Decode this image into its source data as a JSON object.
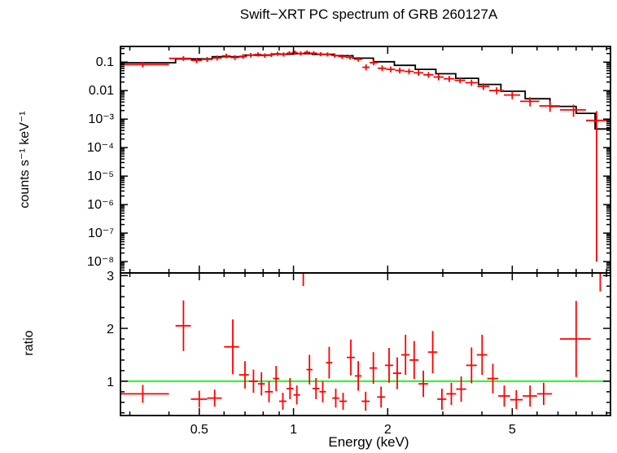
{
  "chart_data": {
    "type": "scatter",
    "title": "Swift−XRT PC spectrum of GRB 260127A",
    "xlabel": "Energy (keV)",
    "xscale": "log",
    "xlim": [
      0.28,
      10.3
    ],
    "xticks_major": [
      {
        "v": 0.5,
        "label": "0.5"
      },
      {
        "v": 1,
        "label": "1"
      },
      {
        "v": 2,
        "label": "2"
      },
      {
        "v": 5,
        "label": "5"
      }
    ],
    "xticks_minor": [
      0.3,
      0.4,
      0.6,
      0.7,
      0.8,
      0.9,
      3,
      4,
      6,
      7,
      8,
      9,
      10
    ],
    "panels": [
      {
        "name": "spectrum",
        "ylabel": "counts s⁻¹ keV⁻¹",
        "yscale": "log",
        "ylim": [
          4e-09,
          0.355
        ],
        "yticks": [
          {
            "v": 0.1,
            "label": "0.1"
          },
          {
            "v": 0.01,
            "label": "0.01"
          },
          {
            "v": 0.001,
            "label": "10⁻³"
          },
          {
            "v": 0.0001,
            "label": "10⁻⁴"
          },
          {
            "v": 1e-05,
            "label": "10⁻⁵"
          },
          {
            "v": 1e-06,
            "label": "10⁻⁶"
          },
          {
            "v": 1e-07,
            "label": "10⁻⁷"
          },
          {
            "v": 1e-08,
            "label": "10⁻⁸"
          }
        ],
        "data_color": "#ff0000",
        "model_color": "#000000",
        "points": [
          [
            0.33,
            0.28,
            0.4,
            0.082,
            0.066,
            0.102
          ],
          [
            0.445,
            0.4,
            0.47,
            0.135,
            0.11,
            0.163
          ],
          [
            0.49,
            0.47,
            0.51,
            0.115,
            0.092,
            0.14
          ],
          [
            0.53,
            0.51,
            0.55,
            0.125,
            0.101,
            0.152
          ],
          [
            0.57,
            0.55,
            0.59,
            0.14,
            0.114,
            0.17
          ],
          [
            0.61,
            0.59,
            0.63,
            0.165,
            0.136,
            0.198
          ],
          [
            0.65,
            0.63,
            0.67,
            0.145,
            0.119,
            0.175
          ],
          [
            0.69,
            0.67,
            0.71,
            0.16,
            0.132,
            0.192
          ],
          [
            0.73,
            0.71,
            0.75,
            0.175,
            0.146,
            0.209
          ],
          [
            0.77,
            0.75,
            0.79,
            0.186,
            0.156,
            0.221
          ],
          [
            0.81,
            0.79,
            0.83,
            0.17,
            0.142,
            0.203
          ],
          [
            0.85,
            0.83,
            0.87,
            0.18,
            0.151,
            0.214
          ],
          [
            0.89,
            0.87,
            0.91,
            0.196,
            0.165,
            0.232
          ],
          [
            0.93,
            0.91,
            0.95,
            0.186,
            0.156,
            0.221
          ],
          [
            0.97,
            0.95,
            0.99,
            0.206,
            0.174,
            0.243
          ],
          [
            1.01,
            0.99,
            1.03,
            0.216,
            0.183,
            0.254
          ],
          [
            1.055,
            1.03,
            1.08,
            0.201,
            0.17,
            0.237
          ],
          [
            1.105,
            1.08,
            1.13,
            0.22,
            0.187,
            0.258
          ],
          [
            1.16,
            1.13,
            1.19,
            0.206,
            0.174,
            0.242
          ],
          [
            1.22,
            1.19,
            1.25,
            0.191,
            0.161,
            0.226
          ],
          [
            1.285,
            1.25,
            1.32,
            0.186,
            0.157,
            0.22
          ],
          [
            1.355,
            1.32,
            1.39,
            0.171,
            0.143,
            0.203
          ],
          [
            1.43,
            1.39,
            1.47,
            0.156,
            0.13,
            0.186
          ],
          [
            1.515,
            1.47,
            1.56,
            0.146,
            0.122,
            0.174
          ],
          [
            1.61,
            1.56,
            1.66,
            0.126,
            0.104,
            0.151
          ],
          [
            1.705,
            1.66,
            1.75,
            0.066,
            0.051,
            0.084
          ],
          [
            1.805,
            1.75,
            1.86,
            0.096,
            0.077,
            0.118
          ],
          [
            1.92,
            1.86,
            1.98,
            0.061,
            0.048,
            0.077
          ],
          [
            2.045,
            1.98,
            2.11,
            0.056,
            0.044,
            0.07
          ],
          [
            2.185,
            2.11,
            2.26,
            0.051,
            0.04,
            0.064
          ],
          [
            2.34,
            2.26,
            2.42,
            0.047,
            0.037,
            0.059
          ],
          [
            2.51,
            2.42,
            2.6,
            0.042,
            0.033,
            0.053
          ],
          [
            2.7,
            2.6,
            2.8,
            0.036,
            0.028,
            0.045
          ],
          [
            2.91,
            2.8,
            3.02,
            0.03,
            0.023,
            0.038
          ],
          [
            3.145,
            3.02,
            3.27,
            0.026,
            0.02,
            0.033
          ],
          [
            3.405,
            3.27,
            3.54,
            0.023,
            0.018,
            0.029
          ],
          [
            3.705,
            3.54,
            3.87,
            0.019,
            0.0145,
            0.0242
          ],
          [
            4.045,
            3.87,
            4.22,
            0.014,
            0.0105,
            0.018
          ],
          [
            4.46,
            4.22,
            4.7,
            0.01,
            0.0074,
            0.0131
          ],
          [
            5.0,
            4.7,
            5.3,
            0.007,
            0.005,
            0.0094
          ],
          [
            5.7,
            5.3,
            6.1,
            0.0042,
            0.0028,
            0.0059
          ],
          [
            6.6,
            6.1,
            7.1,
            0.0029,
            0.0018,
            0.0042
          ],
          [
            7.85,
            7.1,
            8.6,
            0.0021,
            0.0012,
            0.0032
          ],
          [
            9.3,
            8.6,
            10.0,
            0.0009,
            1e-08,
            0.0019
          ]
        ],
        "model_steps": [
          [
            0.28,
            0.42,
            0.095
          ],
          [
            0.42,
            0.55,
            0.13
          ],
          [
            0.55,
            0.7,
            0.155
          ],
          [
            0.7,
            0.85,
            0.175
          ],
          [
            0.85,
            1.0,
            0.19
          ],
          [
            1.0,
            1.15,
            0.197
          ],
          [
            1.15,
            1.35,
            0.188
          ],
          [
            1.35,
            1.55,
            0.168
          ],
          [
            1.55,
            1.8,
            0.138
          ],
          [
            1.8,
            2.1,
            0.103
          ],
          [
            2.1,
            2.45,
            0.077
          ],
          [
            2.45,
            2.85,
            0.056
          ],
          [
            2.85,
            3.3,
            0.039
          ],
          [
            3.3,
            3.9,
            0.027
          ],
          [
            3.9,
            4.6,
            0.0165
          ],
          [
            4.6,
            5.5,
            0.0095
          ],
          [
            5.5,
            6.6,
            0.0052
          ],
          [
            6.6,
            8.0,
            0.0028
          ],
          [
            8.0,
            9.2,
            0.0016
          ],
          [
            9.2,
            10.3,
            0.00045
          ]
        ]
      },
      {
        "name": "ratio",
        "ylabel": "ratio",
        "yscale": "linear",
        "ylim": [
          0.35,
          3.05
        ],
        "yticks": [
          {
            "v": 1,
            "label": "1"
          },
          {
            "v": 2,
            "label": "2"
          },
          {
            "v": 3,
            "label": "3"
          }
        ],
        "data_color": "#ff0000",
        "reference_line": {
          "y": 1,
          "color": "#00ff00"
        },
        "points": [
          [
            0.33,
            0.28,
            0.4,
            0.76,
            0.17
          ],
          [
            0.445,
            0.42,
            0.47,
            2.05,
            0.48
          ],
          [
            0.5,
            0.47,
            0.53,
            0.66,
            0.16
          ],
          [
            0.56,
            0.53,
            0.59,
            0.68,
            0.16
          ],
          [
            0.64,
            0.6,
            0.67,
            1.65,
            0.52
          ],
          [
            0.7,
            0.67,
            0.72,
            1.12,
            0.26
          ],
          [
            0.745,
            0.72,
            0.77,
            1.0,
            0.22
          ],
          [
            0.79,
            0.77,
            0.81,
            0.95,
            0.22
          ],
          [
            0.835,
            0.81,
            0.86,
            0.8,
            0.2
          ],
          [
            0.88,
            0.86,
            0.9,
            1.05,
            0.24
          ],
          [
            0.925,
            0.9,
            0.95,
            0.62,
            0.16
          ],
          [
            0.975,
            0.95,
            1.0,
            0.86,
            0.2
          ],
          [
            1.025,
            1.0,
            1.05,
            0.74,
            0.18
          ],
          [
            1.075,
            1.05,
            1.1,
            3.3,
            0.5
          ],
          [
            1.125,
            1.1,
            1.15,
            1.22,
            0.28
          ],
          [
            1.18,
            1.15,
            1.21,
            0.86,
            0.2
          ],
          [
            1.24,
            1.21,
            1.27,
            0.8,
            0.2
          ],
          [
            1.3,
            1.27,
            1.33,
            1.35,
            0.3
          ],
          [
            1.365,
            1.33,
            1.4,
            0.68,
            0.18
          ],
          [
            1.44,
            1.4,
            1.48,
            0.62,
            0.16
          ],
          [
            1.525,
            1.48,
            1.57,
            1.45,
            0.34
          ],
          [
            1.61,
            1.57,
            1.65,
            1.1,
            0.28
          ],
          [
            1.7,
            1.65,
            1.75,
            0.62,
            0.18
          ],
          [
            1.8,
            1.75,
            1.85,
            1.25,
            0.3
          ],
          [
            1.905,
            1.85,
            1.96,
            0.7,
            0.2
          ],
          [
            2.02,
            1.96,
            2.08,
            1.3,
            0.33
          ],
          [
            2.145,
            2.08,
            2.21,
            1.15,
            0.3
          ],
          [
            2.28,
            2.21,
            2.35,
            1.5,
            0.38
          ],
          [
            2.43,
            2.35,
            2.51,
            1.4,
            0.36
          ],
          [
            2.6,
            2.51,
            2.69,
            0.95,
            0.25
          ],
          [
            2.785,
            2.69,
            2.88,
            1.55,
            0.4
          ],
          [
            2.98,
            2.88,
            3.08,
            0.66,
            0.2
          ],
          [
            3.195,
            3.08,
            3.31,
            0.76,
            0.21
          ],
          [
            3.435,
            3.31,
            3.56,
            0.85,
            0.24
          ],
          [
            3.705,
            3.56,
            3.85,
            1.3,
            0.34
          ],
          [
            4.005,
            3.85,
            4.16,
            1.5,
            0.38
          ],
          [
            4.335,
            4.16,
            4.51,
            1.05,
            0.28
          ],
          [
            4.715,
            4.51,
            4.92,
            0.72,
            0.2
          ],
          [
            5.15,
            4.92,
            5.4,
            0.65,
            0.18
          ],
          [
            5.7,
            5.4,
            6.0,
            0.72,
            0.2
          ],
          [
            6.3,
            6.0,
            6.7,
            0.76,
            0.21
          ],
          [
            8.0,
            7.1,
            8.9,
            1.8,
            0.72
          ],
          [
            9.55,
            8.9,
            10.2,
            3.25,
            0.55
          ]
        ]
      }
    ]
  }
}
